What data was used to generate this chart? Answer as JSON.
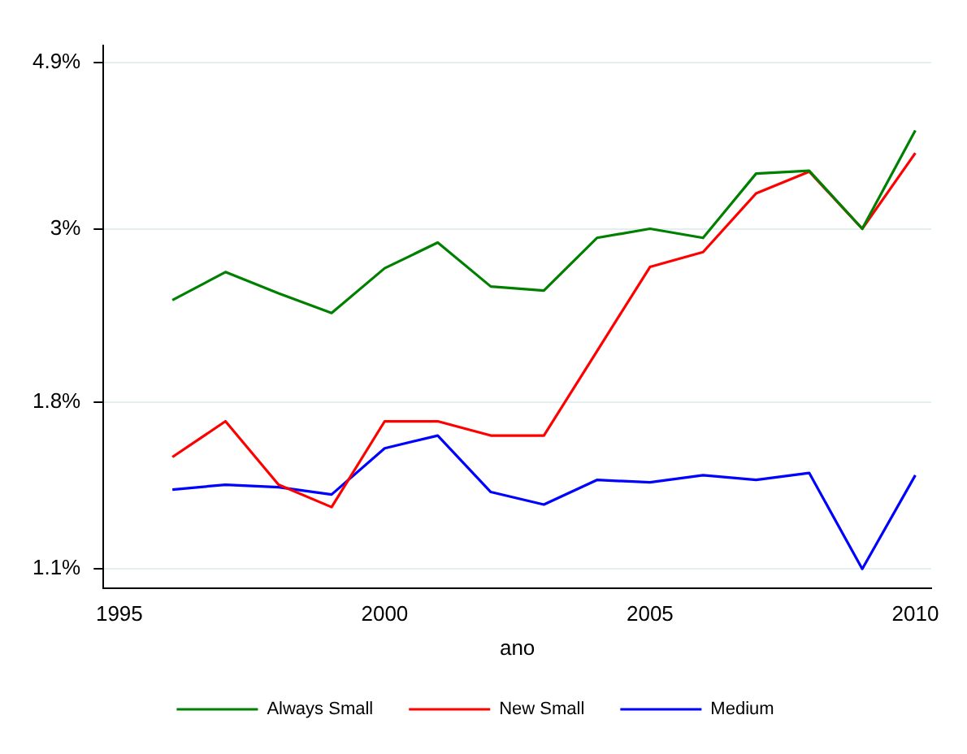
{
  "chart_data": {
    "type": "line",
    "xlabel": "ano",
    "x": [
      1996,
      1997,
      1998,
      1999,
      2000,
      2001,
      2002,
      2003,
      2004,
      2005,
      2006,
      2007,
      2008,
      2009,
      2010
    ],
    "series": [
      {
        "name": "Always Small",
        "color": "#008000",
        "values": [
          2.43,
          2.64,
          2.48,
          2.34,
          2.67,
          2.88,
          2.53,
          2.5,
          2.92,
          3.0,
          2.92,
          3.53,
          3.56,
          3.0,
          4.01
        ]
      },
      {
        "name": "New Small",
        "color": "#ff0000",
        "values": [
          1.53,
          1.7,
          1.41,
          1.32,
          1.7,
          1.7,
          1.63,
          1.63,
          2.09,
          2.68,
          2.8,
          3.33,
          3.55,
          3.0,
          3.75
        ]
      },
      {
        "name": "Medium",
        "color": "#0000ff",
        "values": [
          1.39,
          1.41,
          1.4,
          1.37,
          1.57,
          1.63,
          1.38,
          1.33,
          1.43,
          1.42,
          1.45,
          1.43,
          1.46,
          1.1,
          1.45
        ]
      }
    ],
    "log": "y",
    "xlim": [
      1994.7,
      2010.3
    ],
    "xticks": [
      1995,
      2000,
      2005,
      2010
    ],
    "ylim": [
      1.04,
      5.15
    ],
    "yticks": [
      {
        "value": 1.1,
        "label": "1.1%"
      },
      {
        "value": 1.8,
        "label": "1.8%"
      },
      {
        "value": 3,
        "label": "3%"
      },
      {
        "value": 4.9,
        "label": "4.9%"
      }
    ],
    "grid": "y",
    "legend": "bottom",
    "marker": "none",
    "line_style": "solid"
  }
}
